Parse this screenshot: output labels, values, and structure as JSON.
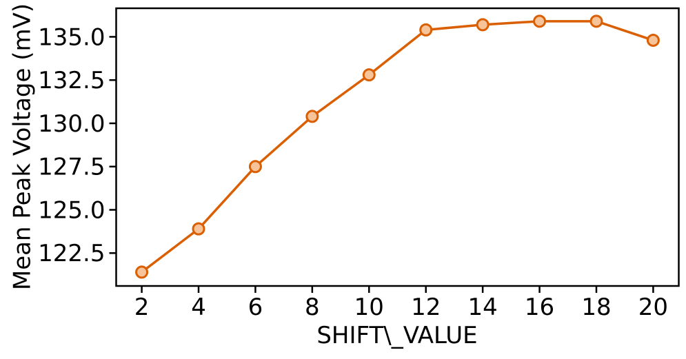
{
  "figure": {
    "background": "#ffffff",
    "axis_color": "#000000",
    "line_color": "#d95f02",
    "marker_face": "#f7c398",
    "marker_edge": "#d95f02"
  },
  "chart_data": {
    "type": "line",
    "title": "",
    "xlabel": "SHIFT\\_VALUE",
    "ylabel": "Mean Peak Voltage (mV)",
    "x": [
      2,
      4,
      6,
      8,
      10,
      12,
      14,
      16,
      18,
      20
    ],
    "y": [
      121.4,
      123.9,
      127.5,
      130.4,
      132.8,
      135.4,
      135.7,
      135.9,
      135.9,
      134.8
    ],
    "series": [
      {
        "name": "Mean Peak Voltage",
        "x": [
          2,
          4,
          6,
          8,
          10,
          12,
          14,
          16,
          18,
          20
        ],
        "values": [
          121.4,
          123.9,
          127.5,
          130.4,
          132.8,
          135.4,
          135.7,
          135.9,
          135.9,
          134.8
        ]
      }
    ],
    "xticks": [
      2,
      4,
      6,
      8,
      10,
      12,
      14,
      16,
      18,
      20
    ],
    "xtick_labels": [
      "2",
      "4",
      "6",
      "8",
      "10",
      "12",
      "14",
      "16",
      "18",
      "20"
    ],
    "yticks": [
      122.5,
      125.0,
      127.5,
      130.0,
      132.5,
      135.0
    ],
    "ytick_labels": [
      "122.5",
      "125.0",
      "127.5",
      "130.0",
      "132.5",
      "135.0"
    ],
    "xlim": [
      1.1,
      20.9
    ],
    "ylim": [
      120.6,
      136.65
    ],
    "grid": false,
    "legend": null,
    "marker": "circle"
  }
}
